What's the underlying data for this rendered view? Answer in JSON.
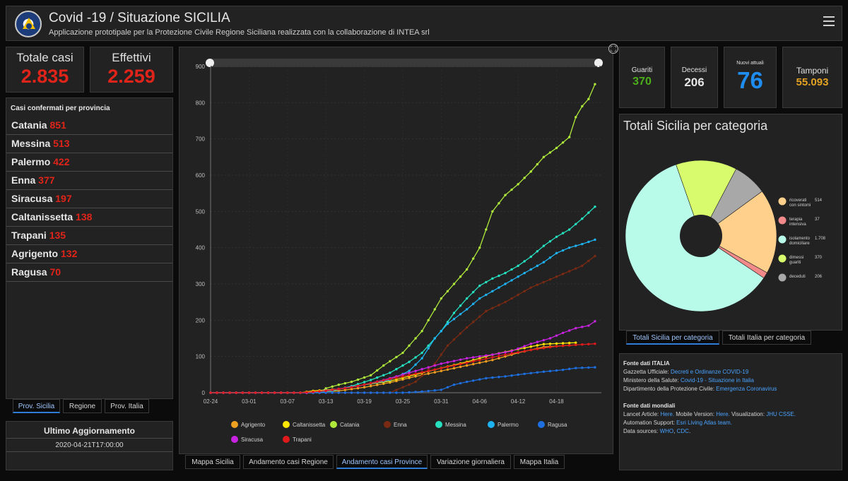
{
  "header": {
    "title": "Covid -19 / Situazione SICILIA",
    "subtitle": "Applicazione prototipale per la Protezione Civile Regione Siciliana realizzata con la collaborazione di INTEA srl"
  },
  "totals": {
    "totale_label": "Totale casi",
    "totale_value": "2.835",
    "effettivi_label": "Effettivi",
    "effettivi_value": "2.259"
  },
  "stats": [
    {
      "label": "Guariti",
      "value": "370",
      "color": "#4caf1a"
    },
    {
      "label": "Decessi",
      "value": "206",
      "color": "#e6e6e6"
    },
    {
      "label": "Nuovi attuali",
      "value": "76",
      "color": "#1f8cf0"
    },
    {
      "label": "Tamponi",
      "value": "55.093",
      "color": "#e3a221"
    }
  ],
  "provinces": {
    "title": "Casi confermati per provincia",
    "items": [
      {
        "name": "Catania",
        "value": "851"
      },
      {
        "name": "Messina",
        "value": "513"
      },
      {
        "name": "Palermo",
        "value": "422"
      },
      {
        "name": "Enna",
        "value": "377"
      },
      {
        "name": "Siracusa",
        "value": "197"
      },
      {
        "name": "Caltanissetta",
        "value": "138"
      },
      {
        "name": "Trapani",
        "value": "135"
      },
      {
        "name": "Agrigento",
        "value": "132"
      },
      {
        "name": "Ragusa",
        "value": "70"
      }
    ]
  },
  "left_tabs": [
    "Prov. Sicilia",
    "Regione",
    "Prov. Italia"
  ],
  "update": {
    "title": "Ultimo Aggiornamento",
    "value": "2020-04-21T17:00:00"
  },
  "chart_tabs": [
    "Mappa Sicilia",
    "Andamento casi Regione",
    "Andamento casi Province",
    "Variazione giornaliera",
    "Mappa Italia"
  ],
  "pie": {
    "title": "Totali Sicilia per categoria",
    "slices": [
      {
        "label1": "ricoverati",
        "label2": "con sintomi",
        "value": 514,
        "value_label": "514",
        "color": "#ffd08c"
      },
      {
        "label1": "terapia",
        "label2": "intensiva",
        "value": 37,
        "value_label": "37",
        "color": "#f28a8a"
      },
      {
        "label1": "isolamento",
        "label2": "domiciliare",
        "value": 1708,
        "value_label": "1.708",
        "color": "#b9fbe9"
      },
      {
        "label1": "dimessi",
        "label2": "guariti",
        "value": 370,
        "value_label": "370",
        "color": "#d7fb6d"
      },
      {
        "label1": "deceduti",
        "label2": "",
        "value": 206,
        "value_label": "206",
        "color": "#a8a8a8"
      }
    ]
  },
  "pie_tabs": [
    "Totali Sicilia per categoria",
    "Totali Italia per categoria"
  ],
  "sources": {
    "italia_title": "Fonte dati ITALIA",
    "gazzetta_label": "Gazzetta Ufficiale: ",
    "gazzetta_link": "Decreti e Ordinanze COVID-19",
    "ministero_label": "Ministero della Salute: ",
    "ministero_link": "Covid-19 - Situazione in Italia",
    "dpc_label": "Dipartimento della Protezione Civile: ",
    "dpc_link": "Emergenza Coronavirus",
    "mondiali_title": "Fonte dati mondiali",
    "lancet_label": "Lancet Article: ",
    "lancet_link": "Here.",
    "mobile_label": " Mobile Version: ",
    "mobile_link": "Here.",
    "viz_label": " Visualization: ",
    "viz_link": "JHU CSSE.",
    "auto_label": "Automation Support: ",
    "auto_link": "Esri Living Atlas team.",
    "ds_label": "Data sources: ",
    "ds_link1": "WHO",
    "ds_sep": ", ",
    "ds_link2": "CDC",
    "ds_end": "."
  },
  "chart_data": {
    "type": "line",
    "x_ticks": [
      "02-24",
      "03-01",
      "03-07",
      "03-13",
      "03-19",
      "03-25",
      "03-31",
      "04-06",
      "04-12",
      "04-18"
    ],
    "y_ticks": [
      "0",
      "100",
      "200",
      "300",
      "400",
      "500",
      "600",
      "700",
      "800",
      "900"
    ],
    "ylim": [
      0,
      900
    ],
    "x_range_days": [
      0,
      57
    ],
    "grid": true,
    "legend_position": "bottom",
    "series": [
      {
        "name": "Agrigento",
        "color": "#f0a020",
        "values": [
          [
            0,
            0
          ],
          [
            14,
            0
          ],
          [
            17,
            2
          ],
          [
            20,
            5
          ],
          [
            24,
            15
          ],
          [
            28,
            28
          ],
          [
            32,
            45
          ],
          [
            36,
            60
          ],
          [
            40,
            75
          ],
          [
            44,
            90
          ],
          [
            48,
            110
          ],
          [
            52,
            126
          ],
          [
            57,
            132
          ]
        ]
      },
      {
        "name": "Caltanissetta",
        "color": "#ffe600",
        "values": [
          [
            0,
            0
          ],
          [
            14,
            0
          ],
          [
            16,
            5
          ],
          [
            20,
            10
          ],
          [
            24,
            22
          ],
          [
            28,
            32
          ],
          [
            32,
            50
          ],
          [
            36,
            68
          ],
          [
            40,
            85
          ],
          [
            44,
            105
          ],
          [
            48,
            120
          ],
          [
            52,
            134
          ],
          [
            57,
            138
          ]
        ]
      },
      {
        "name": "Catania",
        "color": "#aee83a",
        "values": [
          [
            0,
            0
          ],
          [
            17,
            0
          ],
          [
            18,
            12
          ],
          [
            20,
            22
          ],
          [
            22,
            30
          ],
          [
            25,
            48
          ],
          [
            27,
            75
          ],
          [
            30,
            110
          ],
          [
            33,
            170
          ],
          [
            36,
            260
          ],
          [
            38,
            300
          ],
          [
            40,
            340
          ],
          [
            42,
            400
          ],
          [
            43,
            450
          ],
          [
            44,
            500
          ],
          [
            46,
            545
          ],
          [
            48,
            575
          ],
          [
            50,
            610
          ],
          [
            52,
            650
          ],
          [
            54,
            675
          ],
          [
            56,
            705
          ],
          [
            57,
            760
          ],
          [
            58,
            790
          ],
          [
            59,
            810
          ],
          [
            60,
            851
          ]
        ]
      },
      {
        "name": "Enna",
        "color": "#7a2a12",
        "values": [
          [
            0,
            0
          ],
          [
            28,
            0
          ],
          [
            32,
            30
          ],
          [
            35,
            80
          ],
          [
            37,
            130
          ],
          [
            40,
            180
          ],
          [
            43,
            225
          ],
          [
            46,
            250
          ],
          [
            50,
            290
          ],
          [
            54,
            320
          ],
          [
            58,
            350
          ],
          [
            60,
            377
          ]
        ]
      },
      {
        "name": "Messina",
        "color": "#26e0c0",
        "values": [
          [
            0,
            0
          ],
          [
            16,
            0
          ],
          [
            19,
            5
          ],
          [
            22,
            18
          ],
          [
            25,
            35
          ],
          [
            28,
            55
          ],
          [
            31,
            85
          ],
          [
            33,
            110
          ],
          [
            36,
            170
          ],
          [
            38,
            220
          ],
          [
            40,
            260
          ],
          [
            42,
            295
          ],
          [
            44,
            315
          ],
          [
            46,
            330
          ],
          [
            48,
            350
          ],
          [
            50,
            375
          ],
          [
            52,
            405
          ],
          [
            54,
            430
          ],
          [
            56,
            450
          ],
          [
            58,
            480
          ],
          [
            60,
            513
          ]
        ]
      },
      {
        "name": "Palermo",
        "color": "#1fb2f0",
        "values": [
          [
            0,
            0
          ],
          [
            17,
            0
          ],
          [
            20,
            10
          ],
          [
            24,
            22
          ],
          [
            28,
            35
          ],
          [
            31,
            60
          ],
          [
            33,
            95
          ],
          [
            35,
            150
          ],
          [
            37,
            190
          ],
          [
            40,
            230
          ],
          [
            42,
            260
          ],
          [
            44,
            280
          ],
          [
            46,
            300
          ],
          [
            48,
            320
          ],
          [
            50,
            340
          ],
          [
            52,
            360
          ],
          [
            54,
            385
          ],
          [
            56,
            400
          ],
          [
            58,
            410
          ],
          [
            60,
            422
          ]
        ]
      },
      {
        "name": "Ragusa",
        "color": "#1e6fe0",
        "values": [
          [
            0,
            0
          ],
          [
            30,
            0
          ],
          [
            33,
            3
          ],
          [
            36,
            8
          ],
          [
            38,
            22
          ],
          [
            40,
            30
          ],
          [
            43,
            40
          ],
          [
            46,
            45
          ],
          [
            49,
            52
          ],
          [
            52,
            58
          ],
          [
            55,
            63
          ],
          [
            57,
            68
          ],
          [
            60,
            70
          ]
        ]
      },
      {
        "name": "Siracusa",
        "color": "#c823e0",
        "values": [
          [
            0,
            0
          ],
          [
            15,
            0
          ],
          [
            19,
            8
          ],
          [
            23,
            18
          ],
          [
            27,
            35
          ],
          [
            30,
            50
          ],
          [
            33,
            65
          ],
          [
            36,
            80
          ],
          [
            40,
            95
          ],
          [
            44,
            105
          ],
          [
            47,
            115
          ],
          [
            50,
            135
          ],
          [
            53,
            150
          ],
          [
            55,
            165
          ],
          [
            57,
            178
          ],
          [
            59,
            185
          ],
          [
            60,
            197
          ]
        ]
      },
      {
        "name": "Trapani",
        "color": "#e01a1a",
        "values": [
          [
            0,
            0
          ],
          [
            14,
            0
          ],
          [
            18,
            5
          ],
          [
            22,
            15
          ],
          [
            26,
            30
          ],
          [
            30,
            45
          ],
          [
            34,
            60
          ],
          [
            38,
            75
          ],
          [
            42,
            90
          ],
          [
            46,
            105
          ],
          [
            50,
            118
          ],
          [
            54,
            128
          ],
          [
            57,
            132
          ],
          [
            60,
            135
          ]
        ]
      }
    ]
  }
}
